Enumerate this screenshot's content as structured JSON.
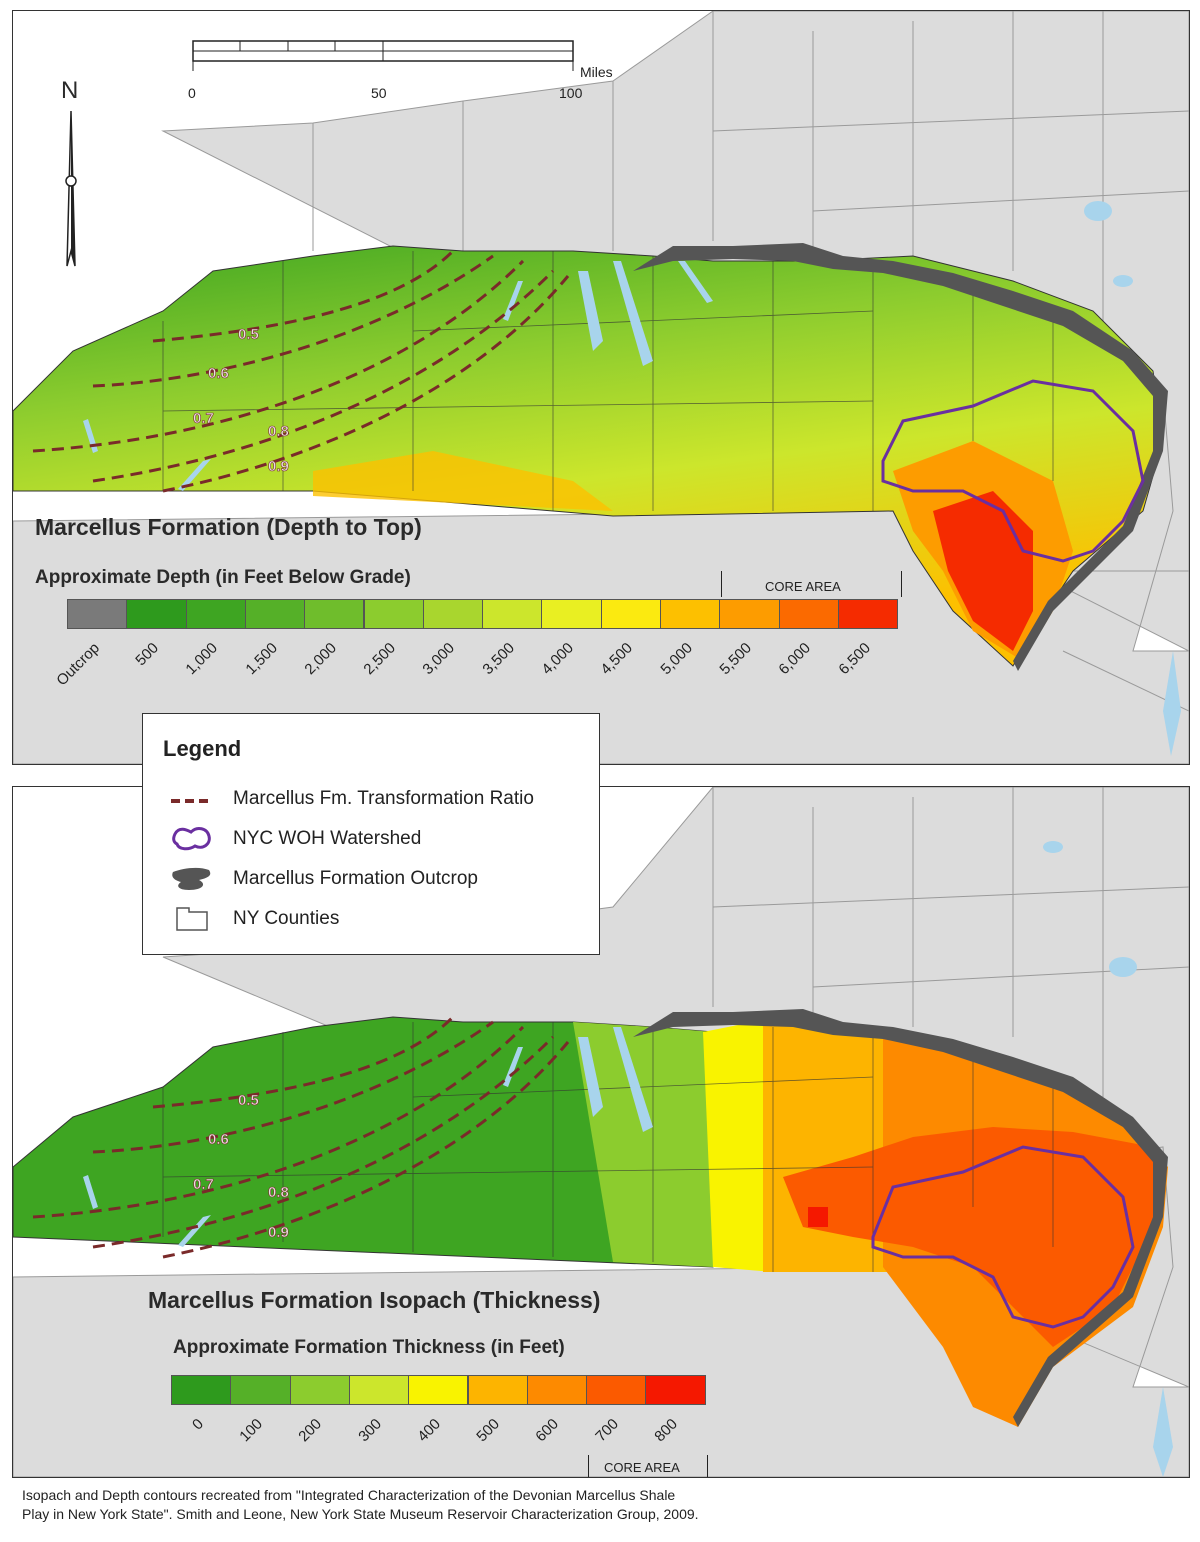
{
  "scale_bar": {
    "labels": [
      "0",
      "50",
      "100"
    ],
    "unit": "Miles"
  },
  "north_arrow": {
    "label": "N",
    "icon": "north-arrow-icon"
  },
  "top_map": {
    "title": "Marcellus Formation (Depth to Top)",
    "subtitle": "Approximate Depth (in Feet Below Grade)",
    "core_area_label": "CORE AREA",
    "classes": [
      "Outcrop",
      "500",
      "1,000",
      "1,500",
      "2,000",
      "2,500",
      "3,000",
      "3,500",
      "4,000",
      "4,500",
      "5,000",
      "5,500",
      "6,000",
      "6,500"
    ],
    "colors": [
      "#7a7a7a",
      "#2e9a1d",
      "#3ea522",
      "#55b028",
      "#6fbd2c",
      "#8ccc2e",
      "#a9d62e",
      "#cce62c",
      "#e9ef22",
      "#fbea10",
      "#fdc000",
      "#fd9c00",
      "#fb6a00",
      "#f52b00"
    ]
  },
  "bottom_map": {
    "title": "Marcellus Formation Isopach (Thickness)",
    "subtitle": "Approximate Formation Thickness (in Feet)",
    "core_area_label": "CORE AREA",
    "classes": [
      "0",
      "100",
      "200",
      "300",
      "400",
      "500",
      "600",
      "700",
      "800"
    ],
    "colors": [
      "#2e9a1d",
      "#55b028",
      "#8ccc2e",
      "#cce62c",
      "#f9f300",
      "#fdb400",
      "#fd8a00",
      "#fb5a00",
      "#f51800"
    ]
  },
  "transformation_ratio_labels": [
    "0.5",
    "0.6",
    "0.7",
    "0.8",
    "0.9"
  ],
  "legend": {
    "title": "Legend",
    "items": [
      {
        "label": "Marcellus Fm. Transformation Ratio",
        "icon": "dashed-line-icon"
      },
      {
        "label": "NYC WOH Watershed",
        "icon": "watershed-outline-icon"
      },
      {
        "label": "Marcellus Formation Outcrop",
        "icon": "outcrop-shape-icon"
      },
      {
        "label": "NY Counties",
        "icon": "county-outline-icon"
      }
    ]
  },
  "source_note": {
    "line1": "Isopach and Depth contours recreated from \"Integrated Characterization of the Devonian Marcellus Shale",
    "line2": "Play in New York State\". Smith and Leone, New York State Museum Reservoir Characterization Group, 2009."
  },
  "colors": {
    "land": "#dcdcdc",
    "county_line": "#ffffff",
    "water": "#a8d4ec",
    "outcrop": "#555555",
    "watershed": "#6a2fa0",
    "ratio_line": "#7a2a2a"
  }
}
